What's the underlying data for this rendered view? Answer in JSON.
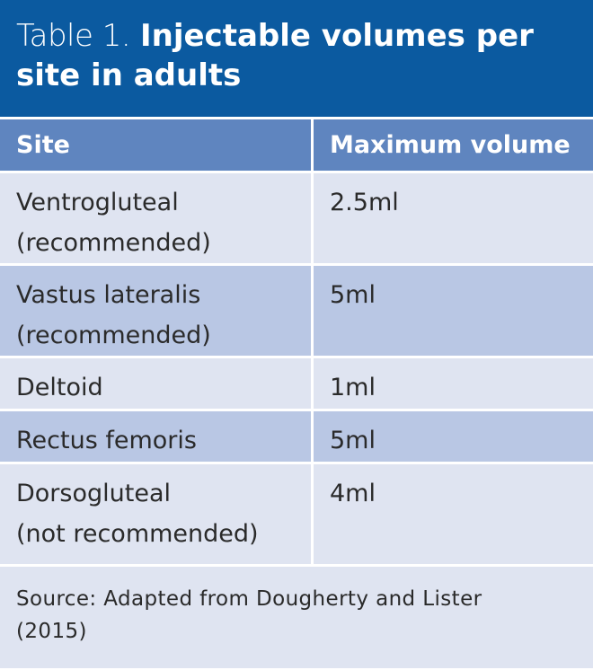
{
  "header": {
    "label": "Table 1.",
    "title": "Injectable volumes per site in adults"
  },
  "table": {
    "columns": [
      "Site",
      "Maximum volume"
    ],
    "rows": [
      [
        "Ventrogluteal\n(recommended)",
        "2.5ml"
      ],
      [
        "Vastus lateralis\n(recommended)",
        "5ml"
      ],
      [
        "Deltoid",
        "1ml"
      ],
      [
        "Rectus femoris",
        "5ml"
      ],
      [
        "Dorsogluteal\n(not recommended)",
        "4ml"
      ]
    ]
  },
  "source": "Source: Adapted from Dougherty and Lister\n(2015)"
}
